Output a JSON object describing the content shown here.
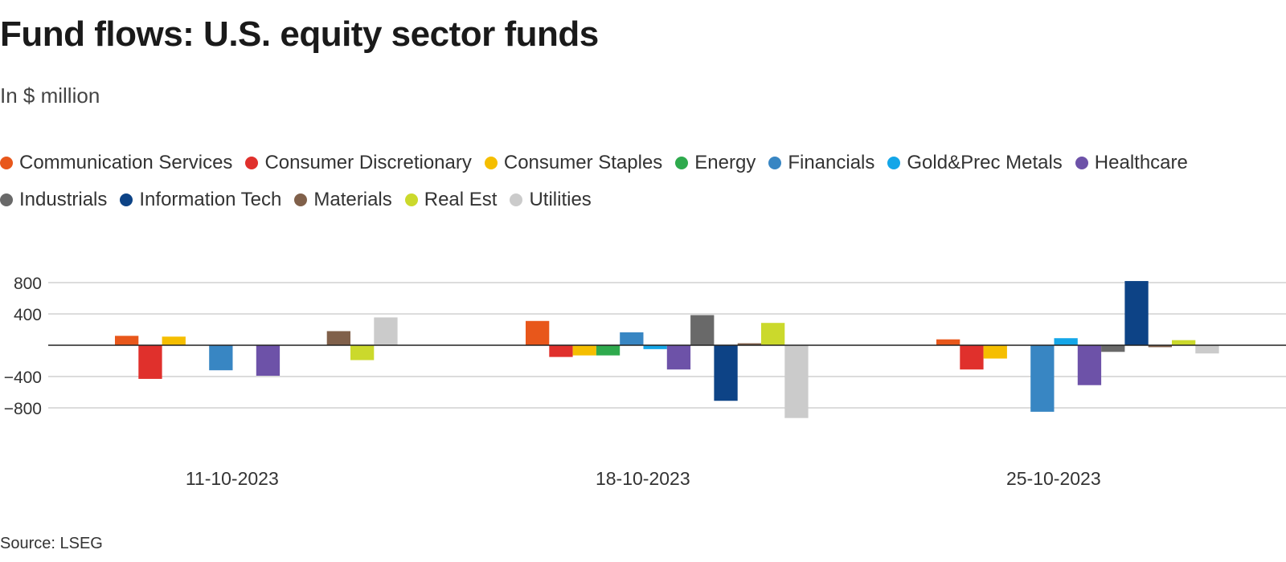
{
  "title": "Fund flows: U.S. equity sector funds",
  "subtitle": "In $ million",
  "source": "Source: LSEG",
  "chart_data": {
    "type": "bar",
    "title": "Fund flows: U.S. equity sector funds",
    "subtitle": "In $ million",
    "xlabel": "",
    "ylabel": "",
    "ylim": [
      -1000,
      900
    ],
    "yticks": [
      800,
      400,
      -400,
      -800
    ],
    "ytick_labels": [
      "800",
      "400",
      "−400",
      "−800"
    ],
    "grid": true,
    "legend_position": "top",
    "categories": [
      "11-10-2023",
      "18-10-2023",
      "25-10-2023"
    ],
    "series": [
      {
        "name": "Communication Services",
        "color": "#e8571b",
        "values": [
          120,
          310,
          75
        ]
      },
      {
        "name": "Consumer Discretionary",
        "color": "#e0302c",
        "values": [
          -430,
          -150,
          -310
        ]
      },
      {
        "name": "Consumer Staples",
        "color": "#f5be00",
        "values": [
          110,
          -130,
          -170
        ]
      },
      {
        "name": "Energy",
        "color": "#2eaa4d",
        "values": [
          0,
          -130,
          0
        ]
      },
      {
        "name": "Financials",
        "color": "#3886c3",
        "values": [
          -320,
          165,
          -850
        ]
      },
      {
        "name": "Gold&Prec Metals",
        "color": "#14a6e8",
        "values": [
          0,
          -50,
          90
        ]
      },
      {
        "name": "Healthcare",
        "color": "#6d52a8",
        "values": [
          -390,
          -310,
          -510
        ]
      },
      {
        "name": "Industrials",
        "color": "#696969",
        "values": [
          0,
          385,
          -85
        ]
      },
      {
        "name": "Information Tech",
        "color": "#0d4386",
        "values": [
          0,
          -710,
          820
        ]
      },
      {
        "name": "Materials",
        "color": "#80604a",
        "values": [
          180,
          25,
          -25
        ]
      },
      {
        "name": "Real Est",
        "color": "#cbd92c",
        "values": [
          -190,
          285,
          65
        ]
      },
      {
        "name": "Utilities",
        "color": "#cbcbcb",
        "values": [
          355,
          -930,
          -105
        ]
      }
    ]
  }
}
